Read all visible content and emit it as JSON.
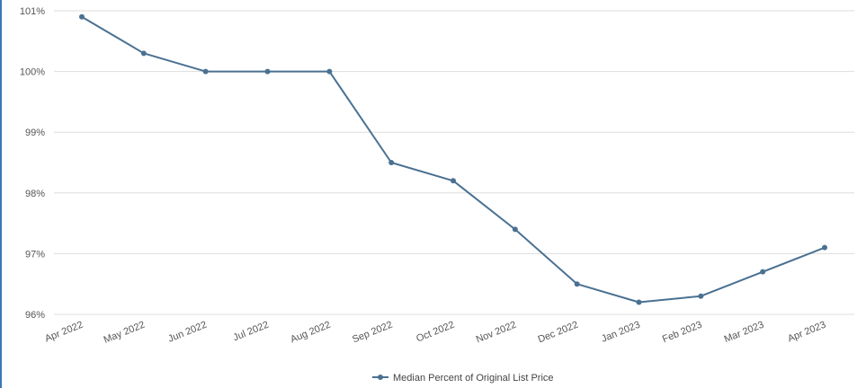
{
  "chart_data": {
    "type": "line",
    "categories": [
      "Apr 2022",
      "May 2022",
      "Jun 2022",
      "Jul 2022",
      "Aug 2022",
      "Sep 2022",
      "Oct 2022",
      "Nov 2022",
      "Dec 2022",
      "Jan 2023",
      "Feb 2023",
      "Mar 2023",
      "Apr 2023"
    ],
    "series": [
      {
        "name": "Median Percent of Original List Price",
        "values": [
          100.9,
          100.3,
          100.0,
          100.0,
          100.0,
          98.5,
          98.2,
          97.4,
          96.5,
          96.2,
          96.3,
          96.7,
          97.1
        ],
        "color": "#4a7192"
      }
    ],
    "y_ticks": [
      "96%",
      "97%",
      "98%",
      "99%",
      "100%",
      "101%"
    ],
    "ylim": [
      96,
      101
    ],
    "grid": true,
    "legend_position": "bottom-center"
  }
}
